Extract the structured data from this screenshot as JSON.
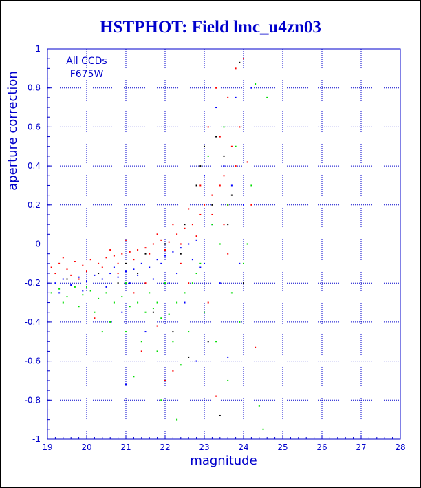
{
  "chart_data": {
    "type": "scatter",
    "title": "HSTPHOT: Field lmc_u4zn03",
    "xlabel": "magnitude",
    "ylabel": "aperture correction",
    "xlim": [
      19,
      28
    ],
    "ylim": [
      -1,
      1
    ],
    "xticks": [
      19,
      20,
      21,
      22,
      23,
      24,
      25,
      26,
      27,
      28
    ],
    "yticks": [
      -1,
      -0.8,
      -0.6,
      -0.4,
      -0.2,
      0,
      0.2,
      0.4,
      0.6,
      0.8,
      1
    ],
    "grid": true,
    "annotations": [
      "All CCDs",
      "F675W"
    ],
    "series": [
      {
        "color": "#ff0000",
        "points": [
          [
            19.1,
            -0.12
          ],
          [
            19.3,
            -0.1
          ],
          [
            19.5,
            -0.13
          ],
          [
            19.7,
            -0.09
          ],
          [
            19.9,
            -0.11
          ],
          [
            20.1,
            -0.08
          ],
          [
            20.3,
            -0.1
          ],
          [
            20.5,
            -0.07
          ],
          [
            20.7,
            -0.06
          ],
          [
            20.9,
            -0.05
          ],
          [
            21.1,
            -0.04
          ],
          [
            21.3,
            -0.03
          ],
          [
            21.5,
            -0.02
          ],
          [
            21.7,
            0.0
          ],
          [
            21.9,
            0.02
          ],
          [
            22.1,
            0.01
          ],
          [
            22.3,
            0.05
          ],
          [
            22.5,
            0.08
          ],
          [
            22.7,
            0.1
          ],
          [
            22.9,
            0.15
          ],
          [
            19.2,
            -0.15
          ],
          [
            19.6,
            -0.16
          ],
          [
            20.0,
            -0.14
          ],
          [
            20.4,
            -0.12
          ],
          [
            20.8,
            -0.1
          ],
          [
            21.2,
            -0.08
          ],
          [
            21.6,
            -0.05
          ],
          [
            22.0,
            -0.03
          ],
          [
            22.4,
            0.0
          ],
          [
            22.8,
            0.04
          ],
          [
            23.0,
            0.2
          ],
          [
            23.2,
            0.25
          ],
          [
            23.4,
            0.3
          ],
          [
            23.5,
            0.1
          ],
          [
            23.6,
            0.2
          ],
          [
            23.7,
            0.5
          ],
          [
            23.8,
            0.9
          ],
          [
            23.3,
            0.8
          ],
          [
            23.6,
            0.75
          ],
          [
            23.9,
            0.6
          ],
          [
            24.0,
            0.95
          ],
          [
            24.2,
            0.2
          ],
          [
            23.1,
            -0.3
          ],
          [
            22.6,
            -0.2
          ],
          [
            21.4,
            -0.55
          ],
          [
            22.2,
            -0.65
          ],
          [
            23.3,
            -0.78
          ],
          [
            24.3,
            -0.53
          ],
          [
            21.8,
            -0.42
          ],
          [
            20.2,
            -0.38
          ],
          [
            19.4,
            -0.07
          ],
          [
            20.6,
            -0.03
          ],
          [
            21.0,
            0.02
          ],
          [
            21.8,
            0.05
          ],
          [
            22.2,
            0.1
          ],
          [
            22.6,
            0.18
          ],
          [
            23.2,
            0.15
          ],
          [
            23.5,
            0.35
          ],
          [
            22.9,
            0.3
          ],
          [
            21.5,
            -0.2
          ],
          [
            20.8,
            -0.15
          ],
          [
            19.8,
            -0.18
          ],
          [
            22.4,
            -0.1
          ],
          [
            23.8,
            0.4
          ],
          [
            23.4,
            0.55
          ],
          [
            23.1,
            0.6
          ],
          [
            24.1,
            0.42
          ],
          [
            23.6,
            -0.05
          ],
          [
            22.0,
            -0.7
          ],
          [
            21.2,
            -0.25
          ]
        ]
      },
      {
        "color": "#0000ff",
        "points": [
          [
            19.2,
            -0.2
          ],
          [
            19.4,
            -0.18
          ],
          [
            19.6,
            -0.21
          ],
          [
            19.8,
            -0.17
          ],
          [
            20.0,
            -0.19
          ],
          [
            20.2,
            -0.16
          ],
          [
            20.4,
            -0.18
          ],
          [
            20.6,
            -0.15
          ],
          [
            20.8,
            -0.17
          ],
          [
            21.0,
            -0.14
          ],
          [
            21.2,
            -0.13
          ],
          [
            21.4,
            -0.1
          ],
          [
            21.6,
            -0.12
          ],
          [
            21.8,
            -0.08
          ],
          [
            22.0,
            -0.06
          ],
          [
            22.2,
            -0.04
          ],
          [
            22.4,
            -0.02
          ],
          [
            22.6,
            0.0
          ],
          [
            22.8,
            0.02
          ],
          [
            23.0,
            -0.1
          ],
          [
            19.3,
            -0.25
          ],
          [
            19.9,
            -0.24
          ],
          [
            20.5,
            -0.22
          ],
          [
            21.1,
            -0.2
          ],
          [
            21.7,
            -0.18
          ],
          [
            22.3,
            -0.15
          ],
          [
            22.9,
            -0.12
          ],
          [
            23.3,
            0.7
          ],
          [
            23.5,
            0.4
          ],
          [
            23.7,
            0.3
          ],
          [
            24.0,
            0.2
          ],
          [
            23.9,
            -0.1
          ],
          [
            21.0,
            -0.72
          ],
          [
            21.5,
            -0.45
          ],
          [
            22.5,
            -0.3
          ],
          [
            23.6,
            -0.58
          ],
          [
            22.8,
            -0.6
          ],
          [
            20.9,
            -0.35
          ],
          [
            23.2,
            0.1
          ],
          [
            23.8,
            0.75
          ],
          [
            21.3,
            -0.16
          ],
          [
            21.9,
            -0.1
          ],
          [
            22.1,
            -0.2
          ],
          [
            20.7,
            -0.12
          ],
          [
            22.7,
            -0.08
          ],
          [
            23.4,
            -0.2
          ],
          [
            24.2,
            0.8
          ],
          [
            23.0,
            0.35
          ]
        ]
      },
      {
        "color": "#00dd00",
        "points": [
          [
            19.1,
            -0.25
          ],
          [
            19.3,
            -0.23
          ],
          [
            19.5,
            -0.27
          ],
          [
            19.7,
            -0.22
          ],
          [
            19.9,
            -0.26
          ],
          [
            20.1,
            -0.24
          ],
          [
            20.3,
            -0.28
          ],
          [
            20.5,
            -0.25
          ],
          [
            20.7,
            -0.3
          ],
          [
            20.9,
            -0.27
          ],
          [
            21.1,
            -0.32
          ],
          [
            21.3,
            -0.3
          ],
          [
            21.5,
            -0.35
          ],
          [
            21.7,
            -0.33
          ],
          [
            21.9,
            -0.38
          ],
          [
            22.1,
            -0.36
          ],
          [
            22.3,
            -0.3
          ],
          [
            22.5,
            -0.25
          ],
          [
            22.7,
            -0.2
          ],
          [
            22.9,
            -0.1
          ],
          [
            19.4,
            -0.3
          ],
          [
            19.8,
            -0.32
          ],
          [
            20.2,
            -0.35
          ],
          [
            20.6,
            -0.4
          ],
          [
            21.0,
            -0.45
          ],
          [
            21.4,
            -0.5
          ],
          [
            21.8,
            -0.55
          ],
          [
            22.2,
            -0.5
          ],
          [
            22.6,
            -0.45
          ],
          [
            23.0,
            -0.35
          ],
          [
            23.2,
            0.1
          ],
          [
            23.4,
            0.0
          ],
          [
            23.6,
            0.2
          ],
          [
            23.8,
            0.5
          ],
          [
            24.1,
            0.0
          ],
          [
            24.3,
            0.82
          ],
          [
            24.6,
            0.75
          ],
          [
            24.5,
            -0.95
          ],
          [
            24.0,
            -0.1
          ],
          [
            23.7,
            -0.25
          ],
          [
            21.2,
            -0.68
          ],
          [
            21.9,
            -0.8
          ],
          [
            22.4,
            -0.62
          ],
          [
            23.3,
            -0.5
          ],
          [
            23.9,
            -0.4
          ],
          [
            24.4,
            -0.83
          ],
          [
            20.4,
            -0.45
          ],
          [
            21.6,
            -0.25
          ],
          [
            22.0,
            -0.2
          ],
          [
            22.8,
            -0.15
          ],
          [
            23.5,
            0.6
          ],
          [
            23.1,
            0.45
          ],
          [
            24.2,
            0.3
          ],
          [
            23.6,
            -0.7
          ],
          [
            22.3,
            -0.9
          ],
          [
            20.0,
            -0.22
          ],
          [
            21.0,
            -0.2
          ],
          [
            21.8,
            -0.3
          ]
        ]
      },
      {
        "color": "#000000",
        "points": [
          [
            19.5,
            -0.18
          ],
          [
            20.3,
            -0.15
          ],
          [
            21.0,
            -0.1
          ],
          [
            21.5,
            -0.05
          ],
          [
            22.0,
            0.0
          ],
          [
            22.5,
            0.1
          ],
          [
            22.8,
            0.3
          ],
          [
            23.0,
            0.5
          ],
          [
            23.3,
            0.55
          ],
          [
            23.5,
            0.45
          ],
          [
            23.7,
            0.25
          ],
          [
            23.9,
            0.93
          ],
          [
            23.1,
            -0.5
          ],
          [
            23.4,
            -0.88
          ],
          [
            22.6,
            -0.58
          ],
          [
            22.2,
            -0.45
          ],
          [
            21.7,
            -0.35
          ],
          [
            23.6,
            0.1
          ],
          [
            23.2,
            0.2
          ],
          [
            20.8,
            -0.2
          ],
          [
            22.9,
            0.4
          ],
          [
            24.0,
            -0.2
          ],
          [
            21.3,
            -0.15
          ],
          [
            22.4,
            -0.05
          ]
        ]
      }
    ]
  }
}
